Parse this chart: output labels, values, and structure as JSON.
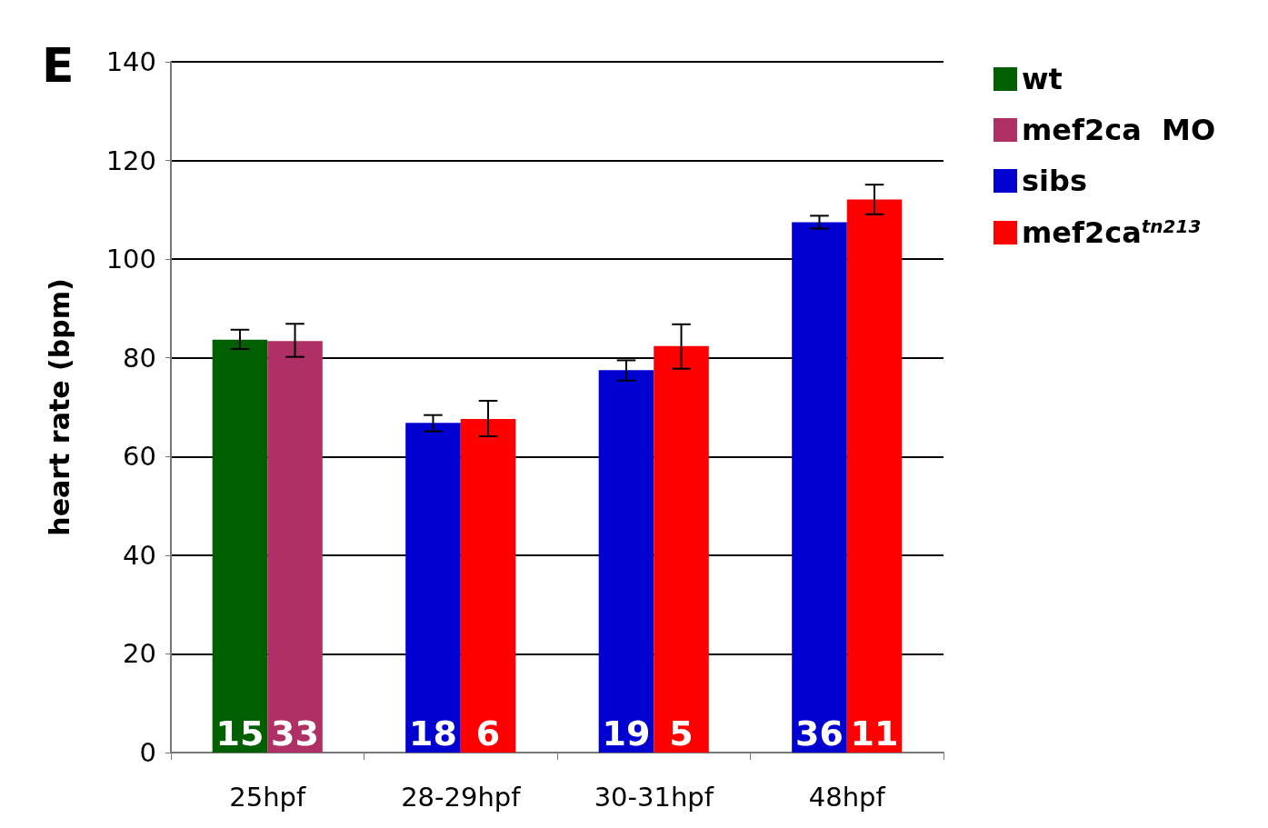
{
  "chart_data": {
    "type": "bar",
    "ylabel": "heart rate (bpm)",
    "annotations": [
      "E",
      {
        "text": "15",
        "x": "25hpf",
        "y": 0
      },
      {
        "text": "33",
        "x": "25hpf",
        "y": 0
      },
      {
        "text": "18",
        "x": "28-29hpf",
        "y": 0
      },
      {
        "text": "6",
        "x": "28-29hpf",
        "y": 0
      },
      {
        "text": "19",
        "x": "30-31hpf",
        "y": 0
      },
      {
        "text": "5",
        "x": "30-31hpf",
        "y": 0
      },
      {
        "text": "36",
        "x": "48hpf",
        "y": 0
      },
      {
        "text": "11",
        "x": "48hpf",
        "y": 0
      }
    ],
    "categories": [
      "25hpf",
      "28-29hpf",
      "30-31hpf",
      "48hpf"
    ],
    "series": [
      {
        "name": "wt",
        "color": "#006000",
        "values": [
          83.7,
          null,
          null,
          null
        ],
        "errors": [
          [
            81.8,
            85.7
          ],
          null,
          null,
          null
        ]
      },
      {
        "name": "mef2ca  MO",
        "color": "#ae3064",
        "values": [
          83.4,
          null,
          null,
          null
        ],
        "errors": [
          [
            80.2,
            86.9
          ],
          null,
          null,
          null
        ]
      },
      {
        "name": "sibs",
        "color": "#0000d0",
        "values": [
          null,
          66.8,
          77.5,
          107.5
        ],
        "errors": [
          null,
          [
            65.1,
            68.4
          ],
          [
            75.4,
            79.5
          ],
          [
            106.2,
            108.8
          ]
        ]
      },
      {
        "name": "mef2ca$^{tn213}$",
        "color": "#ff0000",
        "values": [
          null,
          67.6,
          82.4,
          112.1
        ],
        "errors": [
          null,
          [
            64.1,
            71.3
          ],
          [
            77.8,
            86.8
          ],
          [
            109.1,
            115.1
          ]
        ]
      }
    ],
    "ylim": [
      0,
      140
    ],
    "yticks": [
      0,
      20,
      40,
      60,
      80,
      100,
      120,
      140
    ],
    "grid": "y",
    "legend": "top right"
  }
}
